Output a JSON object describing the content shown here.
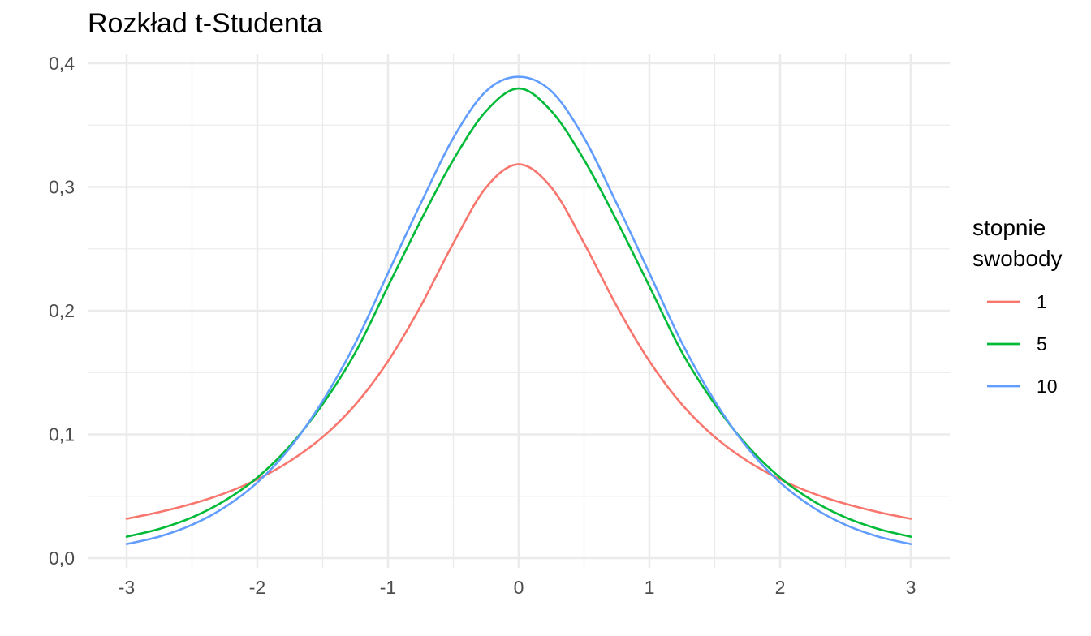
{
  "chart_data": {
    "type": "line",
    "title": "Rozkład t-Studenta",
    "xlabel": "",
    "ylabel": "",
    "xlim": [
      -3,
      3
    ],
    "ylim": [
      0,
      0.4
    ],
    "x_ticks": [
      "-3",
      "-2",
      "-1",
      "0",
      "1",
      "2",
      "3"
    ],
    "y_ticks": [
      "0,0",
      "0,1",
      "0,2",
      "0,3",
      "0,4"
    ],
    "grid": true,
    "legend": {
      "title": [
        "stopnie",
        "swobody"
      ],
      "position": "right"
    },
    "x": [
      -3,
      -2.75,
      -2.5,
      -2.25,
      -2,
      -1.75,
      -1.5,
      -1.25,
      -1,
      -0.75,
      -0.5,
      -0.25,
      0,
      0.25,
      0.5,
      0.75,
      1,
      1.25,
      1.5,
      1.75,
      2,
      2.25,
      2.5,
      2.75,
      3
    ],
    "series": [
      {
        "name": "1",
        "color": "#f8766d",
        "values": [
          0.0318,
          0.0372,
          0.0439,
          0.0524,
          0.0637,
          0.0785,
          0.0979,
          0.1241,
          0.1592,
          0.2037,
          0.2546,
          0.2996,
          0.3183,
          0.2996,
          0.2546,
          0.2037,
          0.1592,
          0.1241,
          0.0979,
          0.0785,
          0.0637,
          0.0524,
          0.0439,
          0.0372,
          0.0318
        ]
      },
      {
        "name": "5",
        "color": "#00ba38",
        "values": [
          0.0173,
          0.0236,
          0.0329,
          0.0464,
          0.0651,
          0.0908,
          0.1245,
          0.1662,
          0.2197,
          0.2728,
          0.322,
          0.3613,
          0.3796,
          0.3613,
          0.322,
          0.2728,
          0.2197,
          0.1662,
          0.1245,
          0.0908,
          0.0651,
          0.0464,
          0.0329,
          0.0236,
          0.0173
        ]
      },
      {
        "name": "10",
        "color": "#619cff",
        "values": [
          0.0114,
          0.0174,
          0.0269,
          0.0411,
          0.0611,
          0.0892,
          0.127,
          0.1738,
          0.2304,
          0.2866,
          0.3397,
          0.3774,
          0.3891,
          0.3774,
          0.3397,
          0.2866,
          0.2304,
          0.1738,
          0.127,
          0.0892,
          0.0611,
          0.0411,
          0.0269,
          0.0174,
          0.0114
        ]
      }
    ]
  }
}
